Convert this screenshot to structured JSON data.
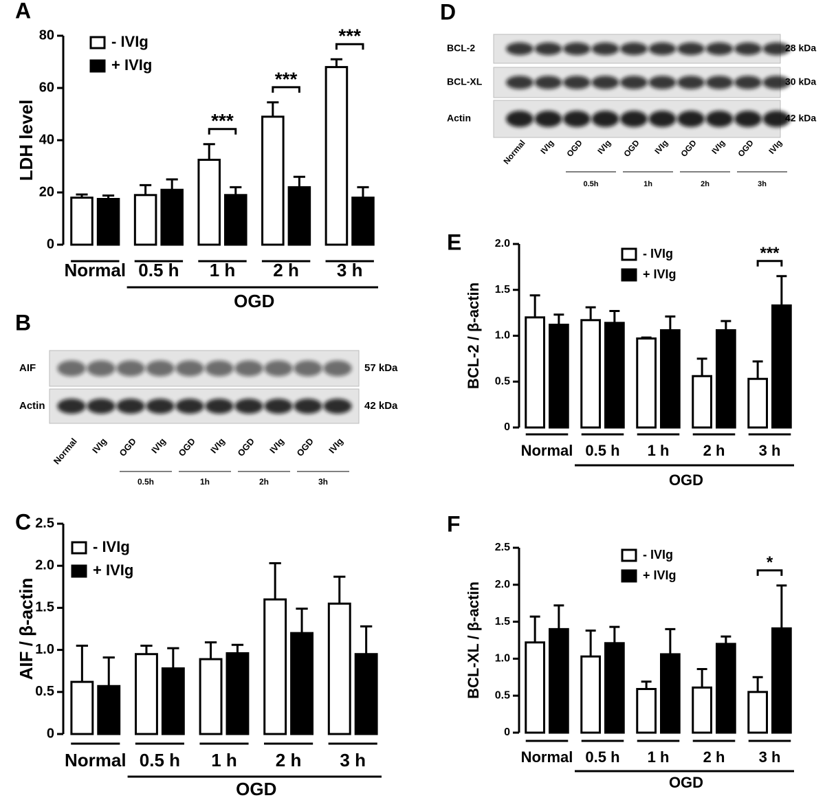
{
  "chart_data": [
    {
      "type": "bar",
      "panel": "A",
      "ylabel": "LDH level",
      "categories": [
        "Normal",
        "0.5 h",
        "1 h",
        "2 h",
        "3 h"
      ],
      "group_label": "OGD",
      "series": [
        {
          "name": "- IVIg",
          "color": "#ffffff",
          "values": [
            18,
            19,
            32.5,
            49,
            68
          ],
          "errors": [
            1.2,
            3.8,
            6,
            5.5,
            3
          ]
        },
        {
          "name": "+ IVIg",
          "color": "#000000",
          "values": [
            17.5,
            21,
            19,
            22,
            18
          ],
          "errors": [
            1.3,
            4,
            3,
            4,
            4
          ]
        }
      ],
      "significance": [
        null,
        null,
        "***",
        "***",
        "***"
      ],
      "ylim": [
        0,
        80
      ],
      "yticks": [
        0,
        20,
        40,
        60,
        80
      ]
    },
    {
      "type": "bar",
      "panel": "C",
      "ylabel": "AIF / β-actin",
      "categories": [
        "Normal",
        "0.5 h",
        "1 h",
        "2 h",
        "3 h"
      ],
      "group_label": "OGD",
      "series": [
        {
          "name": "- IVIg",
          "color": "#ffffff",
          "values": [
            0.62,
            0.95,
            0.89,
            1.6,
            1.55
          ],
          "errors": [
            0.43,
            0.1,
            0.2,
            0.43,
            0.32
          ]
        },
        {
          "name": "+ IVIg",
          "color": "#000000",
          "values": [
            0.57,
            0.78,
            0.96,
            1.2,
            0.95
          ],
          "errors": [
            0.34,
            0.24,
            0.1,
            0.29,
            0.33
          ]
        }
      ],
      "ylim": [
        0,
        2.5
      ],
      "yticks": [
        0,
        0.5,
        {
          "value": 1,
          "label": "1.0"
        },
        1.5,
        {
          "value": 2,
          "label": "2.0"
        },
        2.5
      ]
    },
    {
      "type": "bar",
      "panel": "E",
      "ylabel": "BCL-2 / β-actin",
      "categories": [
        "Normal",
        "0.5 h",
        "1 h",
        "2 h",
        "3 h"
      ],
      "group_label": "OGD",
      "series": [
        {
          "name": "- IVIg",
          "color": "#ffffff",
          "values": [
            1.2,
            1.17,
            0.97,
            0.56,
            0.53
          ],
          "errors": [
            0.24,
            0.14,
            0.01,
            0.19,
            0.19
          ]
        },
        {
          "name": "+ IVIg",
          "color": "#000000",
          "values": [
            1.12,
            1.14,
            1.06,
            1.06,
            1.33
          ],
          "errors": [
            0.11,
            0.13,
            0.15,
            0.1,
            0.32
          ]
        }
      ],
      "significance": [
        null,
        null,
        null,
        null,
        "***"
      ],
      "ylim": [
        0,
        2
      ],
      "yticks": [
        0,
        0.5,
        {
          "value": 1,
          "label": "1.0"
        },
        1.5,
        {
          "value": 2,
          "label": "2.0"
        }
      ]
    },
    {
      "type": "bar",
      "panel": "F",
      "ylabel": "BCL-XL / β-actin",
      "categories": [
        "Normal",
        "0.5 h",
        "1 h",
        "2 h",
        "3 h"
      ],
      "group_label": "OGD",
      "series": [
        {
          "name": "- IVIg",
          "color": "#ffffff",
          "values": [
            1.22,
            1.03,
            0.59,
            0.61,
            0.55
          ],
          "errors": [
            0.35,
            0.35,
            0.1,
            0.25,
            0.2
          ]
        },
        {
          "name": "+ IVIg",
          "color": "#000000",
          "values": [
            1.4,
            1.21,
            1.06,
            1.2,
            1.41
          ],
          "errors": [
            0.32,
            0.22,
            0.34,
            0.1,
            0.58
          ]
        }
      ],
      "significance": [
        null,
        null,
        null,
        null,
        "*"
      ],
      "ylim": [
        0,
        2.5
      ],
      "yticks": [
        0,
        0.5,
        {
          "value": 1,
          "label": "1.0"
        },
        1.5,
        {
          "value": 2,
          "label": "2.0"
        },
        2.5
      ]
    }
  ],
  "blots": [
    {
      "panel": "B",
      "rows": [
        {
          "label": "AIF",
          "size": "57 kDa"
        },
        {
          "label": "Actin",
          "size": "42 kDa"
        }
      ],
      "lanes": [
        "Normal",
        "IVIg",
        "OGD",
        "IVIg",
        "OGD",
        "IVIg",
        "OGD",
        "IVIg",
        "OGD",
        "IVIg"
      ],
      "times": [
        "0.5h",
        "1h",
        "2h",
        "3h"
      ]
    },
    {
      "panel": "D",
      "rows": [
        {
          "label": "BCL-2",
          "size": "28 kDa"
        },
        {
          "label": "BCL-XL",
          "size": "30 kDa"
        },
        {
          "label": "Actin",
          "size": "42 kDa"
        }
      ],
      "lanes": [
        "Normal",
        "IVIg",
        "OGD",
        "IVIg",
        "OGD",
        "IVIg",
        "OGD",
        "IVIg",
        "OGD",
        "IVIg"
      ],
      "times": [
        "0.5h",
        "1h",
        "2h",
        "3h"
      ]
    }
  ]
}
